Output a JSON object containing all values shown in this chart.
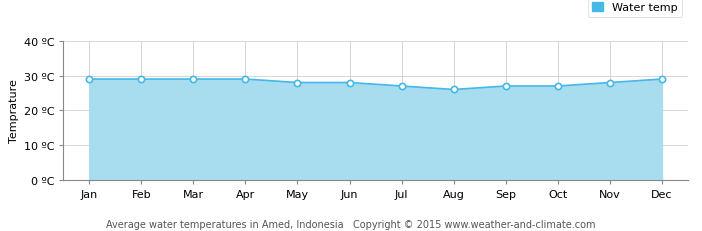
{
  "months": [
    "Jan",
    "Feb",
    "Mar",
    "Apr",
    "May",
    "Jun",
    "Jul",
    "Aug",
    "Sep",
    "Oct",
    "Nov",
    "Dec"
  ],
  "water_temp": [
    29,
    29,
    29,
    29,
    28,
    28,
    27,
    26,
    27,
    27,
    28,
    29
  ],
  "line_color": "#45b8e8",
  "fill_color": "#a8ddf0",
  "marker_face": "#ffffff",
  "marker_edge": "#45b8e8",
  "ylim": [
    0,
    40
  ],
  "yticks": [
    0,
    10,
    20,
    30,
    40
  ],
  "ytick_labels": [
    "0 ºC",
    "10 ºC",
    "20 ºC",
    "30 ºC",
    "40 ºC"
  ],
  "ylabel": "Temprature",
  "legend_label": "Water temp",
  "legend_color": "#45b8e8",
  "footer": "Average water temperatures in Amed, Indonesia   Copyright © 2015 www.weather-and-climate.com",
  "background_color": "#ffffff",
  "grid_color": "#d0d0d0",
  "label_fontsize": 8,
  "footer_fontsize": 7
}
